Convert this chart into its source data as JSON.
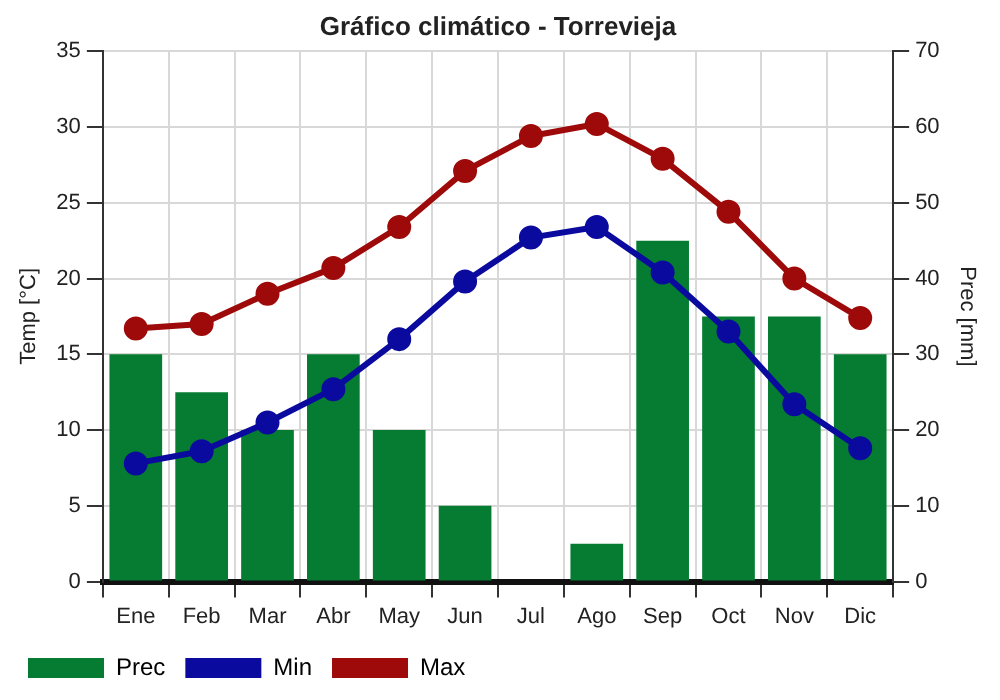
{
  "chart_data": {
    "type": "line",
    "title": "Gráfico climático - Torrevieja",
    "ylabel": "Temp [°C]",
    "y2label": "Prec [mm]",
    "categories": [
      "Ene",
      "Feb",
      "Mar",
      "Abr",
      "May",
      "Jun",
      "Jul",
      "Ago",
      "Sep",
      "Oct",
      "Nov",
      "Dic"
    ],
    "series": [
      {
        "name": "Prec",
        "type": "bar",
        "axis": "y2",
        "color": "#057c32",
        "values": [
          30,
          25,
          20,
          30,
          20,
          10,
          0,
          5,
          45,
          35,
          35,
          30
        ]
      },
      {
        "name": "Min",
        "color": "#0a0a9e",
        "values": [
          7.8,
          8.6,
          10.5,
          12.7,
          16,
          19.8,
          22.7,
          23.4,
          20.4,
          16.5,
          11.7,
          8.8
        ]
      },
      {
        "name": "Max",
        "color": "#9e0a0a",
        "values": [
          16.7,
          17,
          19,
          20.7,
          23.4,
          27.1,
          29.4,
          30.2,
          27.9,
          24.4,
          20,
          17.4
        ]
      }
    ],
    "ylim": [
      0,
      35
    ],
    "yticks": [
      0,
      5,
      10,
      15,
      20,
      25,
      30,
      35
    ],
    "y2lim": [
      0,
      70
    ],
    "y2ticks": [
      0,
      10,
      20,
      30,
      40,
      50,
      60,
      70
    ],
    "grid": true,
    "legend": "bottom",
    "marker": "circle"
  }
}
